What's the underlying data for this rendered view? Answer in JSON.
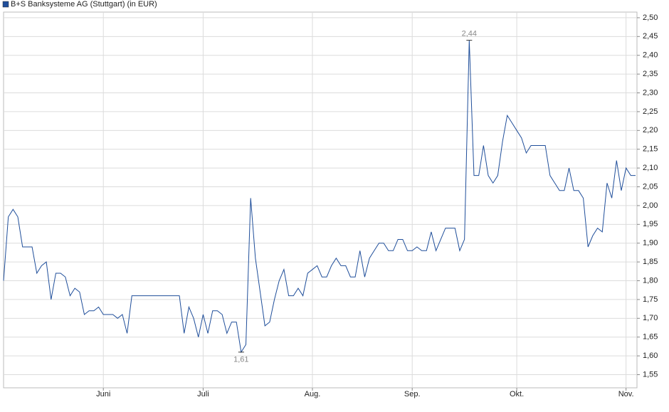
{
  "chart_data": {
    "type": "line",
    "series": [
      {
        "name": "B+S Banksysteme AG (Stuttgart) (in EUR)",
        "color": "#1f4e9a",
        "values": [
          1.8,
          1.97,
          1.99,
          1.97,
          1.89,
          1.89,
          1.89,
          1.82,
          1.84,
          1.85,
          1.75,
          1.82,
          1.82,
          1.81,
          1.76,
          1.78,
          1.77,
          1.71,
          1.72,
          1.72,
          1.73,
          1.71,
          1.71,
          1.71,
          1.7,
          1.71,
          1.66,
          1.76,
          1.76,
          1.76,
          1.76,
          1.76,
          1.76,
          1.76,
          1.76,
          1.76,
          1.76,
          1.76,
          1.66,
          1.73,
          1.7,
          1.65,
          1.71,
          1.66,
          1.72,
          1.72,
          1.71,
          1.66,
          1.69,
          1.69,
          1.61,
          1.63,
          2.02,
          1.86,
          1.77,
          1.68,
          1.69,
          1.75,
          1.8,
          1.83,
          1.76,
          1.76,
          1.78,
          1.76,
          1.82,
          1.83,
          1.84,
          1.81,
          1.81,
          1.84,
          1.86,
          1.84,
          1.84,
          1.81,
          1.81,
          1.88,
          1.81,
          1.86,
          1.88,
          1.9,
          1.9,
          1.88,
          1.88,
          1.91,
          1.91,
          1.88,
          1.88,
          1.89,
          1.88,
          1.88,
          1.93,
          1.88,
          1.91,
          1.94,
          1.94,
          1.94,
          1.88,
          1.91,
          2.44,
          2.08,
          2.08,
          2.16,
          2.08,
          2.06,
          2.08,
          2.17,
          2.24,
          2.22,
          2.2,
          2.18,
          2.14,
          2.16,
          2.16,
          2.16,
          2.16,
          2.08,
          2.06,
          2.04,
          2.04,
          2.1,
          2.04,
          2.04,
          2.02,
          1.89,
          1.92,
          1.94,
          1.93,
          2.06,
          2.02,
          2.12,
          2.04,
          2.1,
          2.08,
          2.08
        ],
        "value_labels": [
          null,
          null,
          null,
          null,
          null,
          null,
          null,
          null,
          null,
          null,
          null,
          null,
          null,
          null,
          null,
          null,
          null,
          null,
          null,
          null,
          null,
          null,
          null,
          null,
          null,
          null,
          null,
          null,
          null,
          null,
          null,
          null,
          null,
          null,
          null,
          null,
          null,
          null,
          null,
          null,
          null,
          null,
          null,
          null,
          null,
          null,
          null,
          null,
          null,
          null,
          "1,61",
          null,
          null,
          null,
          null,
          null,
          null,
          null,
          null,
          null,
          null,
          null,
          null,
          null,
          null,
          null,
          null,
          null,
          null,
          null,
          null,
          null,
          null,
          null,
          null,
          null,
          null,
          null,
          null,
          null,
          null,
          null,
          null,
          null,
          null,
          null,
          null,
          null,
          null,
          null,
          null,
          null,
          null,
          null,
          null,
          null,
          null,
          null,
          "2,44",
          null,
          null,
          null,
          null,
          null,
          null,
          null,
          null,
          null,
          null,
          null,
          null,
          null,
          null,
          null,
          null,
          null,
          null,
          null,
          null,
          null,
          null,
          null,
          null,
          null,
          null,
          null,
          null,
          null,
          null,
          null,
          null,
          null,
          null,
          null
        ]
      }
    ],
    "categories": [
      null,
      null,
      null,
      null,
      null,
      null,
      null,
      null,
      null,
      null,
      null,
      null,
      null,
      null,
      null,
      null,
      null,
      null,
      null,
      null,
      null,
      "Juni",
      null,
      null,
      null,
      null,
      null,
      null,
      null,
      null,
      null,
      null,
      null,
      null,
      null,
      null,
      null,
      null,
      null,
      null,
      null,
      null,
      "Juli",
      null,
      null,
      null,
      null,
      null,
      null,
      null,
      null,
      null,
      null,
      null,
      null,
      null,
      null,
      null,
      null,
      null,
      null,
      null,
      null,
      null,
      null,
      "Aug.",
      null,
      null,
      null,
      null,
      null,
      null,
      null,
      null,
      null,
      null,
      null,
      null,
      null,
      null,
      null,
      null,
      null,
      null,
      null,
      null,
      "Sep.",
      null,
      null,
      null,
      null,
      null,
      null,
      null,
      null,
      null,
      null,
      null,
      null,
      null,
      null,
      null,
      null,
      null,
      null,
      null,
      null,
      null,
      "Okt.",
      null,
      null,
      null,
      null,
      null,
      null,
      null,
      null,
      null,
      null,
      null,
      null,
      null,
      null,
      null,
      null,
      null,
      null,
      null,
      null,
      null,
      null,
      "Nov.",
      null,
      null
    ],
    "ylim": [
      1.515,
      2.515
    ],
    "yticks": [
      {
        "value": 1.55,
        "label": "1,55"
      },
      {
        "value": 1.6,
        "label": "1,60"
      },
      {
        "value": 1.65,
        "label": "1,65"
      },
      {
        "value": 1.7,
        "label": "1,70"
      },
      {
        "value": 1.75,
        "label": "1,75"
      },
      {
        "value": 1.8,
        "label": "1,80"
      },
      {
        "value": 1.85,
        "label": "1,85"
      },
      {
        "value": 1.9,
        "label": "1,90"
      },
      {
        "value": 1.95,
        "label": "1,95"
      },
      {
        "value": 2.0,
        "label": "2,00"
      },
      {
        "value": 2.05,
        "label": "2,05"
      },
      {
        "value": 2.1,
        "label": "2,10"
      },
      {
        "value": 2.15,
        "label": "2,15"
      },
      {
        "value": 2.2,
        "label": "2,20"
      },
      {
        "value": 2.25,
        "label": "2,25"
      },
      {
        "value": 2.3,
        "label": "2,30"
      },
      {
        "value": 2.35,
        "label": "2,35"
      },
      {
        "value": 2.4,
        "label": "2,40"
      },
      {
        "value": 2.45,
        "label": "2,45"
      },
      {
        "value": 2.5,
        "label": "2,50"
      }
    ],
    "grid": true,
    "legend": "top-left"
  }
}
